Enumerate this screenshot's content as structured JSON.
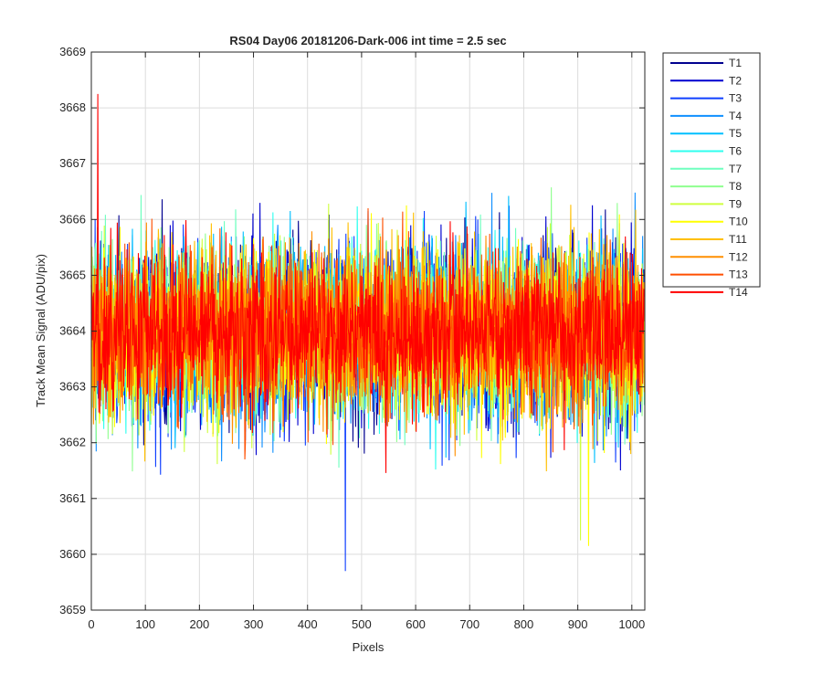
{
  "chart_data": {
    "type": "line",
    "title": "RS04 Day06 20181206-Dark-006 int time = 2.5 sec",
    "xlabel": "Pixels",
    "ylabel": "Track Mean Signal (ADU/pix)",
    "xlim": [
      0,
      1024
    ],
    "ylim": [
      3659,
      3669
    ],
    "xticks": [
      0,
      100,
      200,
      300,
      400,
      500,
      600,
      700,
      800,
      900,
      1000
    ],
    "yticks": [
      3659,
      3660,
      3661,
      3662,
      3663,
      3664,
      3665,
      3666,
      3667,
      3668,
      3669
    ],
    "grid": true,
    "legend_position": "outside-top-right",
    "series": [
      {
        "name": "T1",
        "color": "#00008f",
        "mean": 3664.0,
        "sd": 0.75
      },
      {
        "name": "T2",
        "color": "#0000cf",
        "mean": 3664.0,
        "sd": 0.78
      },
      {
        "name": "T3",
        "color": "#0f3fff",
        "mean": 3664.0,
        "sd": 0.78
      },
      {
        "name": "T4",
        "color": "#0f8fff",
        "mean": 3664.0,
        "sd": 0.76
      },
      {
        "name": "T5",
        "color": "#00bfff",
        "mean": 3664.0,
        "sd": 0.76
      },
      {
        "name": "T6",
        "color": "#2fffef",
        "mean": 3664.0,
        "sd": 0.75
      },
      {
        "name": "T7",
        "color": "#6fffbf",
        "mean": 3664.0,
        "sd": 0.74
      },
      {
        "name": "T8",
        "color": "#8fff8f",
        "mean": 3664.0,
        "sd": 0.74
      },
      {
        "name": "T9",
        "color": "#cfff3f",
        "mean": 3664.0,
        "sd": 0.74
      },
      {
        "name": "T10",
        "color": "#ffff00",
        "mean": 3664.0,
        "sd": 0.74
      },
      {
        "name": "T11",
        "color": "#ffbf00",
        "mean": 3664.0,
        "sd": 0.72
      },
      {
        "name": "T12",
        "color": "#ff8f00",
        "mean": 3664.0,
        "sd": 0.72
      },
      {
        "name": "T13",
        "color": "#ff4f00",
        "mean": 3664.0,
        "sd": 0.7
      },
      {
        "name": "T14",
        "color": "#ff0000",
        "mean": 3664.0,
        "sd": 0.68
      }
    ],
    "annotations": [
      {
        "series": "T14",
        "x": 12,
        "y": 3668.25,
        "note": "maximum spike"
      },
      {
        "series": "T3",
        "x": 470,
        "y": 3659.7,
        "note": "minimum spike"
      },
      {
        "series": "T10",
        "x": 920,
        "y": 3660.15
      },
      {
        "series": "T9",
        "x": 905,
        "y": 3660.25
      }
    ]
  }
}
